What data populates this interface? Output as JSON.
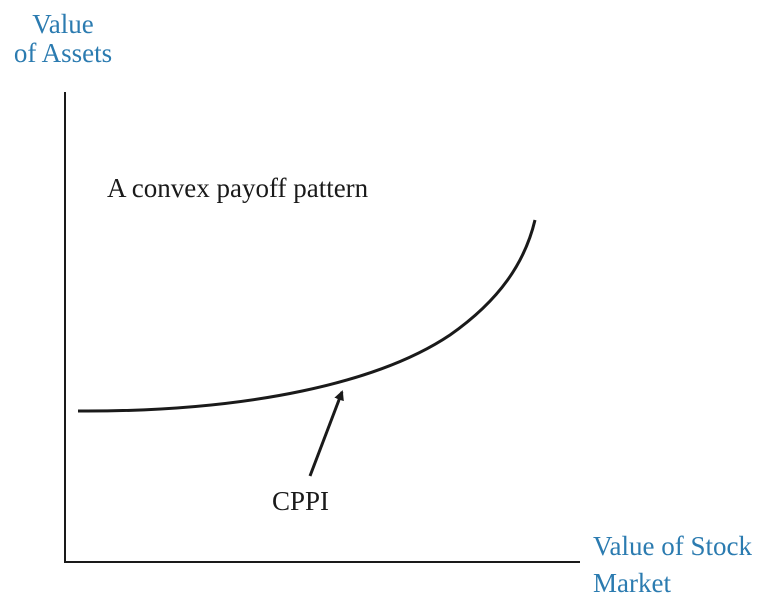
{
  "y_axis_label": [
    "Value",
    "of Assets"
  ],
  "x_axis_label": [
    "Value of Stock",
    "Market"
  ],
  "annotation": "A convex payoff pattern",
  "curve_label": "CPPI"
}
